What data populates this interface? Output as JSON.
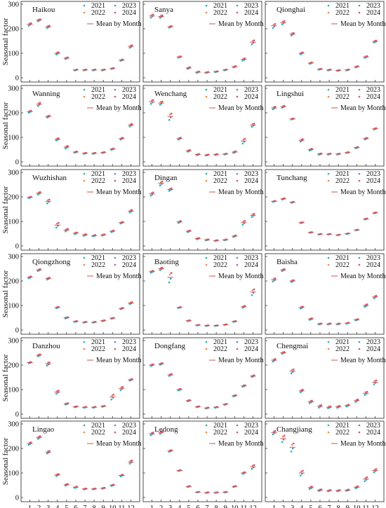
{
  "figure": {
    "y_label": "Seasonal factor",
    "x_label": "Month",
    "legend_years": [
      "2021",
      "2022",
      "2023",
      "2024"
    ],
    "legend_mean": "Mean by Month",
    "colors": {
      "2021": "#1fb5ad",
      "2022": "#e8894a",
      "2023": "#4d8fd8",
      "2024": "#d94c7a",
      "mean": "#cf5252",
      "frame": "#222222"
    }
  },
  "chart_data": [
    {
      "type": "scatter",
      "title": "Haikou",
      "xlabel": "",
      "ylabel": "Seasonal factor",
      "x": [
        1,
        2,
        3,
        4,
        5,
        6,
        7,
        8,
        9,
        10,
        11,
        12
      ],
      "mean": [
        218,
        235,
        208,
        100,
        80,
        32,
        32,
        32,
        32,
        38,
        72,
        128
      ],
      "spread": [
        8,
        6,
        7,
        7,
        5,
        3,
        3,
        3,
        3,
        3,
        4,
        8
      ],
      "xlim": [
        0.5,
        12.5
      ],
      "ylim": [
        0,
        300
      ],
      "yticks": [
        0,
        100,
        200,
        300
      ],
      "show_yticks": true,
      "show_xticks": false
    },
    {
      "type": "scatter",
      "title": "Sanya",
      "xlabel": "",
      "ylabel": "",
      "x": [
        1,
        2,
        3,
        4,
        5,
        6,
        7,
        8,
        9,
        10,
        11,
        12
      ],
      "mean": [
        252,
        250,
        208,
        85,
        40,
        23,
        22,
        25,
        32,
        45,
        75,
        145
      ],
      "spread": [
        10,
        8,
        5,
        4,
        5,
        4,
        3,
        3,
        3,
        4,
        7,
        12
      ],
      "xlim": [
        0.5,
        12.5
      ],
      "ylim": [
        0,
        300
      ],
      "yticks": [
        0,
        100,
        200,
        300
      ],
      "show_yticks": false,
      "show_xticks": false
    },
    {
      "type": "scatter",
      "title": "Qionghai",
      "xlabel": "",
      "ylabel": "",
      "x": [
        1,
        2,
        3,
        4,
        5,
        6,
        7,
        8,
        9,
        10,
        11,
        12
      ],
      "mean": [
        212,
        225,
        178,
        100,
        60,
        35,
        32,
        30,
        32,
        45,
        85,
        148
      ],
      "spread": [
        12,
        10,
        8,
        6,
        4,
        3,
        3,
        3,
        3,
        4,
        5,
        6
      ],
      "xlim": [
        0.5,
        12.5
      ],
      "ylim": [
        0,
        300
      ],
      "yticks": [
        0,
        100,
        200,
        300
      ],
      "show_yticks": false,
      "show_xticks": false
    },
    {
      "type": "scatter",
      "title": "Wanning",
      "xlabel": "",
      "ylabel": "Seasonal factor",
      "x": [
        1,
        2,
        3,
        4,
        5,
        6,
        7,
        8,
        9,
        10,
        11,
        12
      ],
      "mean": [
        205,
        235,
        185,
        92,
        60,
        40,
        35,
        35,
        38,
        52,
        95,
        150
      ],
      "spread": [
        6,
        10,
        6,
        7,
        8,
        4,
        3,
        3,
        3,
        4,
        6,
        8
      ],
      "xlim": [
        0.5,
        12.5
      ],
      "ylim": [
        0,
        300
      ],
      "yticks": [
        0,
        100,
        200,
        300
      ],
      "show_yticks": true,
      "show_xticks": false
    },
    {
      "type": "scatter",
      "title": "Wenchang",
      "xlabel": "",
      "ylabel": "",
      "x": [
        1,
        2,
        3,
        4,
        5,
        6,
        7,
        8,
        9,
        10,
        11,
        12
      ],
      "mean": [
        245,
        240,
        185,
        95,
        45,
        30,
        28,
        30,
        32,
        40,
        85,
        150
      ],
      "spread": [
        12,
        10,
        20,
        6,
        5,
        4,
        3,
        3,
        3,
        5,
        15,
        10
      ],
      "xlim": [
        0.5,
        12.5
      ],
      "ylim": [
        0,
        300
      ],
      "yticks": [
        0,
        100,
        200,
        300
      ],
      "show_yticks": false,
      "show_xticks": false
    },
    {
      "type": "scatter",
      "title": "Lingshui",
      "xlabel": "",
      "ylabel": "",
      "x": [
        1,
        2,
        3,
        4,
        5,
        6,
        7,
        8,
        9,
        10,
        11,
        12
      ],
      "mean": [
        220,
        225,
        175,
        88,
        50,
        32,
        32,
        32,
        38,
        58,
        95,
        135
      ],
      "spread": [
        8,
        6,
        3,
        8,
        6,
        4,
        3,
        3,
        3,
        4,
        5,
        4
      ],
      "xlim": [
        0.5,
        12.5
      ],
      "ylim": [
        0,
        300
      ],
      "yticks": [
        0,
        100,
        200,
        300
      ],
      "show_yticks": false,
      "show_xticks": false
    },
    {
      "type": "scatter",
      "title": "Wuzhishan",
      "xlabel": "",
      "ylabel": "Seasonal factor",
      "x": [
        1,
        2,
        3,
        4,
        5,
        6,
        7,
        8,
        9,
        10,
        11,
        12
      ],
      "mean": [
        198,
        215,
        182,
        85,
        65,
        52,
        45,
        42,
        45,
        60,
        95,
        142
      ],
      "spread": [
        4,
        8,
        12,
        15,
        8,
        5,
        5,
        4,
        4,
        5,
        5,
        8
      ],
      "xlim": [
        0.5,
        12.5
      ],
      "ylim": [
        0,
        300
      ],
      "yticks": [
        0,
        100,
        200,
        300
      ],
      "show_yticks": true,
      "show_xticks": false
    },
    {
      "type": "scatter",
      "title": "Dingan",
      "xlabel": "",
      "ylabel": "",
      "x": [
        1,
        2,
        3,
        4,
        5,
        6,
        7,
        8,
        9,
        10,
        11,
        12
      ],
      "mean": [
        212,
        255,
        230,
        98,
        60,
        30,
        25,
        22,
        25,
        40,
        95,
        125
      ],
      "spread": [
        10,
        12,
        8,
        6,
        5,
        4,
        3,
        3,
        3,
        5,
        12,
        10
      ],
      "xlim": [
        0.5,
        12.5
      ],
      "ylim": [
        0,
        300
      ],
      "yticks": [
        0,
        100,
        200,
        300
      ],
      "show_yticks": false,
      "show_xticks": false
    },
    {
      "type": "scatter",
      "title": "Tunchang",
      "xlabel": "",
      "ylabel": "",
      "x": [
        1,
        2,
        3,
        4,
        5,
        6,
        7,
        8,
        9,
        10,
        11,
        12
      ],
      "mean": [
        182,
        192,
        178,
        95,
        55,
        48,
        48,
        45,
        50,
        65,
        110,
        135
      ],
      "spread": [
        3,
        4,
        3,
        3,
        2,
        2,
        2,
        2,
        2,
        2,
        3,
        3
      ],
      "xlim": [
        0.5,
        12.5
      ],
      "ylim": [
        0,
        300
      ],
      "yticks": [
        0,
        100,
        200,
        300
      ],
      "show_yticks": false,
      "show_xticks": false
    },
    {
      "type": "scatter",
      "title": "Qiongzhong",
      "xlabel": "",
      "ylabel": "Seasonal factor",
      "x": [
        1,
        2,
        3,
        4,
        5,
        6,
        7,
        8,
        9,
        10,
        11,
        12
      ],
      "mean": [
        215,
        245,
        210,
        92,
        50,
        35,
        32,
        32,
        38,
        48,
        88,
        110
      ],
      "spread": [
        6,
        6,
        6,
        4,
        4,
        3,
        3,
        3,
        3,
        3,
        4,
        6
      ],
      "xlim": [
        0.5,
        12.5
      ],
      "ylim": [
        0,
        300
      ],
      "yticks": [
        0,
        100,
        200,
        300
      ],
      "show_yticks": true,
      "show_xticks": false
    },
    {
      "type": "scatter",
      "title": "Baoting",
      "xlabel": "",
      "ylabel": "",
      "x": [
        1,
        2,
        3,
        4,
        5,
        6,
        7,
        8,
        9,
        10,
        11,
        12
      ],
      "mean": [
        238,
        250,
        215,
        92,
        38,
        20,
        18,
        18,
        22,
        35,
        95,
        155
      ],
      "spread": [
        6,
        8,
        30,
        3,
        3,
        2,
        2,
        2,
        2,
        3,
        6,
        18
      ],
      "xlim": [
        0.5,
        12.5
      ],
      "ylim": [
        0,
        300
      ],
      "yticks": [
        0,
        100,
        200,
        300
      ],
      "show_yticks": false,
      "show_xticks": false
    },
    {
      "type": "scatter",
      "title": "Baisha",
      "xlabel": "",
      "ylabel": "",
      "x": [
        1,
        2,
        3,
        4,
        5,
        6,
        7,
        8,
        9,
        10,
        11,
        12
      ],
      "mean": [
        205,
        245,
        200,
        92,
        45,
        25,
        25,
        25,
        28,
        42,
        100,
        135
      ],
      "spread": [
        10,
        6,
        6,
        6,
        5,
        3,
        3,
        3,
        3,
        4,
        8,
        8
      ],
      "xlim": [
        0.5,
        12.5
      ],
      "ylim": [
        0,
        300
      ],
      "yticks": [
        0,
        100,
        200,
        300
      ],
      "show_yticks": false,
      "show_xticks": false
    },
    {
      "type": "scatter",
      "title": "Danzhou",
      "xlabel": "",
      "ylabel": "Seasonal factor",
      "x": [
        1,
        2,
        3,
        4,
        5,
        6,
        7,
        8,
        9,
        10,
        11,
        12
      ],
      "mean": [
        210,
        240,
        205,
        90,
        42,
        30,
        28,
        28,
        32,
        70,
        105,
        140
      ],
      "spread": [
        4,
        6,
        10,
        10,
        4,
        3,
        3,
        3,
        3,
        15,
        10,
        5
      ],
      "xlim": [
        0.5,
        12.5
      ],
      "ylim": [
        0,
        300
      ],
      "yticks": [
        0,
        100,
        200,
        300
      ],
      "show_yticks": true,
      "show_xticks": false
    },
    {
      "type": "scatter",
      "title": "Dongfang",
      "xlabel": "",
      "ylabel": "",
      "x": [
        1,
        2,
        3,
        4,
        5,
        6,
        7,
        8,
        9,
        10,
        11,
        12
      ],
      "mean": [
        200,
        205,
        160,
        100,
        55,
        30,
        25,
        28,
        40,
        75,
        115,
        155
      ],
      "spread": [
        5,
        5,
        6,
        5,
        4,
        3,
        3,
        3,
        3,
        4,
        5,
        5
      ],
      "xlim": [
        0.5,
        12.5
      ],
      "ylim": [
        0,
        300
      ],
      "yticks": [
        0,
        100,
        200,
        300
      ],
      "show_yticks": false,
      "show_xticks": false
    },
    {
      "type": "scatter",
      "title": "Chengmai",
      "xlabel": "",
      "ylabel": "",
      "x": [
        1,
        2,
        3,
        4,
        5,
        6,
        7,
        8,
        9,
        10,
        11,
        12
      ],
      "mean": [
        220,
        250,
        175,
        95,
        50,
        32,
        28,
        30,
        35,
        55,
        85,
        130
      ],
      "spread": [
        8,
        6,
        12,
        8,
        8,
        8,
        6,
        6,
        6,
        8,
        10,
        12
      ],
      "xlim": [
        0.5,
        12.5
      ],
      "ylim": [
        0,
        300
      ],
      "yticks": [
        0,
        100,
        200,
        300
      ],
      "show_yticks": false,
      "show_xticks": false
    },
    {
      "type": "scatter",
      "title": "Lingao",
      "xlabel": "Month",
      "ylabel": "Seasonal factor",
      "x": [
        1,
        2,
        3,
        4,
        5,
        6,
        7,
        8,
        9,
        10,
        11,
        12
      ],
      "mean": [
        220,
        245,
        185,
        92,
        52,
        42,
        35,
        35,
        38,
        50,
        90,
        145
      ],
      "spread": [
        8,
        8,
        8,
        6,
        5,
        4,
        3,
        3,
        3,
        4,
        5,
        10
      ],
      "xlim": [
        0.5,
        12.5
      ],
      "ylim": [
        0,
        300
      ],
      "yticks": [
        0,
        100,
        200,
        300
      ],
      "show_yticks": true,
      "show_xticks": true
    },
    {
      "type": "scatter",
      "title": "Ledong",
      "xlabel": "Month",
      "ylabel": "",
      "x": [
        1,
        2,
        3,
        4,
        5,
        6,
        7,
        8,
        9,
        10,
        11,
        12
      ],
      "mean": [
        260,
        265,
        190,
        110,
        45,
        22,
        20,
        20,
        22,
        45,
        100,
        125
      ],
      "spread": [
        8,
        8,
        5,
        3,
        3,
        2,
        2,
        2,
        2,
        3,
        5,
        12
      ],
      "xlim": [
        0.5,
        12.5
      ],
      "ylim": [
        0,
        300
      ],
      "yticks": [
        0,
        100,
        200,
        300
      ],
      "show_yticks": false,
      "show_xticks": true
    },
    {
      "type": "scatter",
      "title": "Changjiang",
      "xlabel": "Month",
      "ylabel": "",
      "x": [
        1,
        2,
        3,
        4,
        5,
        6,
        7,
        8,
        9,
        10,
        11,
        12
      ],
      "mean": [
        265,
        240,
        205,
        100,
        40,
        30,
        28,
        28,
        30,
        42,
        75,
        110
      ],
      "spread": [
        10,
        20,
        25,
        15,
        8,
        5,
        4,
        4,
        4,
        6,
        12,
        10
      ],
      "xlim": [
        0.5,
        12.5
      ],
      "ylim": [
        0,
        300
      ],
      "yticks": [
        0,
        100,
        200,
        300
      ],
      "show_yticks": false,
      "show_xticks": true
    }
  ]
}
